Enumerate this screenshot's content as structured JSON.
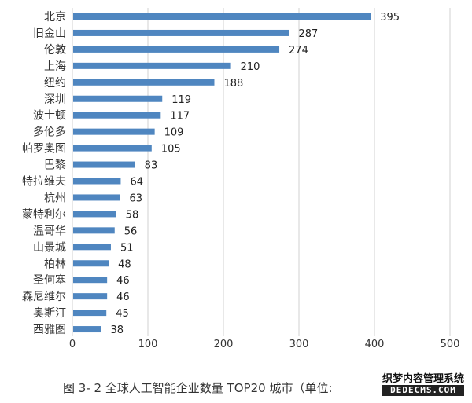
{
  "chart_data": {
    "type": "bar",
    "orientation": "horizontal",
    "title": "图 3- 2 全球人工智能企业数量 TOP20 城市（单位:",
    "categories": [
      "北京",
      "旧金山",
      "伦敦",
      "上海",
      "纽约",
      "深圳",
      "波士顿",
      "多伦多",
      "帕罗奥图",
      "巴黎",
      "特拉维夫",
      "杭州",
      "蒙特利尔",
      "温哥华",
      "山景城",
      "柏林",
      "圣何塞",
      "森尼维尔",
      "奥斯汀",
      "西雅图"
    ],
    "values": [
      395,
      287,
      274,
      210,
      188,
      119,
      117,
      109,
      105,
      83,
      64,
      63,
      58,
      56,
      51,
      48,
      46,
      46,
      45,
      38
    ],
    "xlim": [
      0,
      500
    ],
    "xticks": [
      0,
      100,
      200,
      300,
      400,
      500
    ],
    "grid": "vertical",
    "bar_color": "#4f86c0",
    "xlabel": "",
    "ylabel": ""
  },
  "watermark": {
    "line1": "织梦内容管理系统",
    "line2": "DEDECMS.COM"
  }
}
